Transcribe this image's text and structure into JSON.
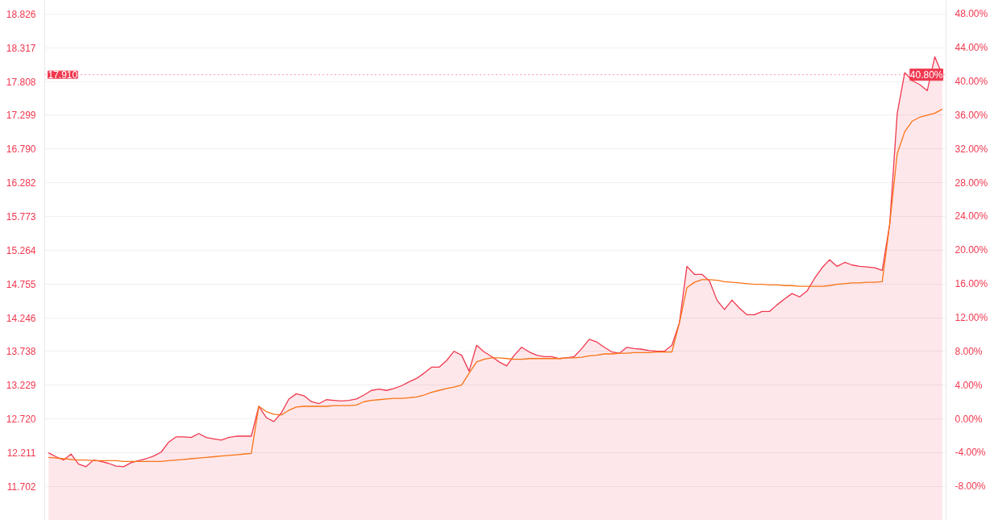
{
  "chart_data": {
    "type": "area",
    "categories": [
      null,
      null,
      null,
      null,
      null,
      null,
      null,
      null,
      null,
      null,
      null,
      null,
      null,
      null,
      null,
      null,
      null,
      null,
      null,
      null,
      null,
      null,
      null,
      null,
      null,
      null,
      null,
      null,
      null,
      null,
      null,
      null,
      null,
      null,
      null,
      null,
      null,
      null,
      null,
      null,
      null,
      null,
      null,
      null,
      null,
      null,
      null,
      null,
      null,
      null,
      null,
      null,
      null,
      null,
      null,
      null,
      null,
      null,
      null,
      null,
      null,
      null,
      null,
      null,
      null,
      null,
      null,
      null,
      null,
      null,
      null,
      null,
      null,
      null,
      null,
      null,
      null,
      null,
      null,
      null,
      null,
      null,
      null,
      null,
      null,
      null,
      null,
      null,
      null,
      null,
      null,
      null,
      null,
      null,
      null,
      null,
      null,
      null,
      null,
      null,
      null,
      null,
      null,
      null,
      null,
      null,
      null,
      null,
      null,
      null,
      null,
      null,
      null,
      null,
      null,
      null,
      null,
      null,
      null,
      null
    ],
    "ylim": [
      11.19,
      19.03
    ],
    "yticks": [
      11.702,
      12.211,
      {
        "value": 12.72,
        "label": "12.720"
      },
      13.229,
      13.738,
      14.246,
      14.755,
      15.264,
      15.773,
      16.282,
      {
        "value": 16.79,
        "label": "16.790"
      },
      17.299,
      17.808,
      18.317,
      18.826
    ],
    "y2lim": [
      -12.03,
      49.6
    ],
    "y2ticks": [
      {
        "value": -8,
        "label": "-8.00%"
      },
      {
        "value": -4,
        "label": "-4.00%"
      },
      {
        "value": 0,
        "label": "0.00%"
      },
      {
        "value": 4,
        "label": "4.00%"
      },
      {
        "value": 8,
        "label": "8.00%"
      },
      {
        "value": 12,
        "label": "12.00%"
      },
      {
        "value": 16,
        "label": "16.00%"
      },
      {
        "value": 20,
        "label": "20.00%"
      },
      {
        "value": 24,
        "label": "24.00%"
      },
      {
        "value": 28,
        "label": "28.00%"
      },
      {
        "value": 32,
        "label": "32.00%"
      },
      {
        "value": 36,
        "label": "36.00%"
      },
      {
        "value": 40,
        "label": "40.00%"
      },
      {
        "value": 44,
        "label": "44.00%"
      },
      {
        "value": 48,
        "label": "48.00%"
      }
    ],
    "grid": "y",
    "ref_lines": [
      {
        "axis": "y",
        "value": 17.91,
        "label": "17.910",
        "color": "#f0384f",
        "line_style": "dotted"
      }
    ],
    "annotations": [
      {
        "text": "40.80%",
        "y": 17.91
      }
    ],
    "series": [
      {
        "type": "area",
        "color": "#f0384f",
        "values": [
          12.21,
          12.15,
          12.1,
          12.19,
          12.04,
          12.0,
          12.1,
          12.08,
          12.05,
          12.01,
          12.0,
          12.06,
          12.09,
          12.12,
          12.16,
          12.22,
          12.37,
          12.45,
          12.45,
          12.44,
          12.5,
          12.44,
          12.42,
          12.4,
          12.44,
          12.46,
          12.46,
          12.46,
          12.91,
          12.74,
          12.68,
          12.81,
          13.02,
          13.1,
          13.07,
          12.98,
          12.95,
          13.01,
          13.0,
          12.99,
          13.0,
          13.02,
          13.08,
          13.15,
          13.17,
          13.15,
          13.18,
          13.22,
          13.28,
          13.33,
          13.41,
          13.5,
          13.5,
          13.6,
          13.74,
          13.68,
          13.44,
          13.83,
          13.73,
          13.66,
          13.58,
          13.52,
          13.68,
          13.8,
          13.73,
          13.68,
          13.66,
          13.66,
          13.63,
          13.64,
          13.66,
          13.78,
          13.92,
          13.88,
          13.8,
          13.73,
          13.71,
          13.8,
          13.78,
          13.77,
          13.75,
          13.74,
          13.74,
          13.83,
          14.17,
          15.02,
          14.9,
          14.9,
          14.8,
          14.51,
          14.37,
          14.51,
          14.39,
          14.29,
          14.29,
          14.34,
          14.34,
          14.44,
          14.53,
          14.61,
          14.56,
          14.65,
          14.84,
          15.0,
          15.12,
          15.02,
          15.08,
          15.04,
          15.02,
          15.01,
          15.0,
          14.96,
          15.66,
          17.33,
          17.94,
          17.82,
          17.76,
          17.67,
          18.18,
          17.91
        ]
      },
      {
        "type": "line",
        "color": "#f97316",
        "values": [
          12.14,
          12.13,
          12.12,
          12.11,
          12.1,
          12.1,
          12.09,
          12.09,
          12.09,
          12.09,
          12.08,
          12.08,
          12.08,
          12.08,
          12.08,
          12.08,
          12.09,
          12.1,
          12.11,
          12.12,
          12.13,
          12.14,
          12.15,
          12.16,
          12.17,
          12.18,
          12.19,
          12.2,
          12.91,
          12.83,
          12.79,
          12.78,
          12.85,
          12.9,
          12.91,
          12.91,
          12.91,
          12.91,
          12.92,
          12.92,
          12.92,
          12.93,
          12.98,
          13.0,
          13.01,
          13.02,
          13.03,
          13.03,
          13.04,
          13.05,
          13.08,
          13.12,
          13.15,
          13.18,
          13.2,
          13.23,
          13.41,
          13.58,
          13.62,
          13.64,
          13.64,
          13.63,
          13.62,
          13.62,
          13.63,
          13.63,
          13.63,
          13.63,
          13.63,
          13.64,
          13.64,
          13.65,
          13.67,
          13.68,
          13.7,
          13.7,
          13.71,
          13.71,
          13.72,
          13.72,
          13.72,
          13.73,
          13.73,
          13.73,
          14.17,
          14.7,
          14.78,
          14.82,
          14.82,
          14.81,
          14.79,
          14.78,
          14.77,
          14.76,
          14.75,
          14.75,
          14.74,
          14.74,
          14.73,
          14.73,
          14.72,
          14.72,
          14.72,
          14.72,
          14.73,
          14.75,
          14.76,
          14.77,
          14.77,
          14.78,
          14.78,
          14.79,
          15.66,
          16.72,
          17.05,
          17.21,
          17.27,
          17.3,
          17.33,
          17.39
        ]
      }
    ]
  }
}
